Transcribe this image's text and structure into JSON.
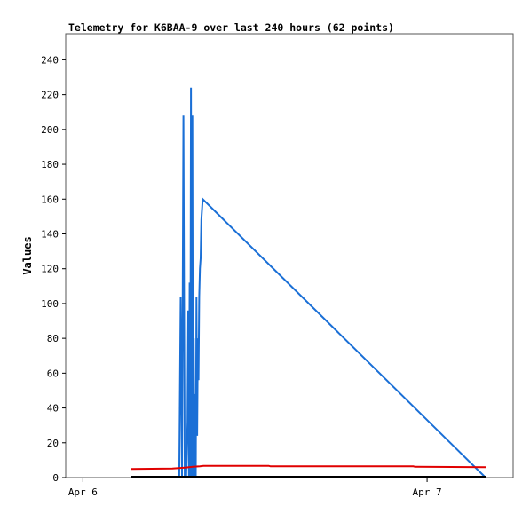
{
  "chart_data": {
    "type": "line",
    "title": "Telemetry for K6BAA-9 over last 240 hours (62 points)",
    "xlabel": "",
    "ylabel": "Values",
    "ylim": [
      0,
      255
    ],
    "yticks": [
      0,
      20,
      40,
      60,
      80,
      100,
      120,
      140,
      160,
      180,
      200,
      220,
      240
    ],
    "xlim": [
      -0.05,
      1.25
    ],
    "xticks": [
      {
        "x": 0,
        "label": "Apr 6"
      },
      {
        "x": 1,
        "label": "Apr 7"
      }
    ],
    "x_unit": "days since Apr 6 00:00",
    "grid": false,
    "series": [
      {
        "color": "#1a6fd6",
        "x": [
          0.28,
          0.284,
          0.288,
          0.292,
          0.296,
          0.3,
          0.304,
          0.306,
          0.308,
          0.31,
          0.312,
          0.314,
          0.316,
          0.318,
          0.32,
          0.322,
          0.324,
          0.326,
          0.328,
          0.33,
          0.332,
          0.334,
          0.336,
          0.338,
          0.34,
          0.342,
          0.344,
          0.348,
          1.17
        ],
        "y": [
          0,
          104,
          0,
          208,
          0,
          0,
          32,
          96,
          0,
          112,
          0,
          224,
          0,
          208,
          0,
          80,
          0,
          48,
          0,
          104,
          24,
          80,
          56,
          104,
          120,
          126,
          148,
          160,
          0
        ]
      },
      {
        "color": "#e00000",
        "x": [
          0.14,
          0.26,
          0.3,
          0.32,
          0.34,
          0.35,
          0.54,
          0.545,
          0.96,
          0.965,
          1.17
        ],
        "y": [
          5,
          5.2,
          5.8,
          6.2,
          6.5,
          6.8,
          6.8,
          6.5,
          6.5,
          6.2,
          6
        ]
      },
      {
        "color": "#000000",
        "x": [
          0.14,
          1.17
        ],
        "y": [
          0.5,
          0.5
        ]
      }
    ]
  }
}
